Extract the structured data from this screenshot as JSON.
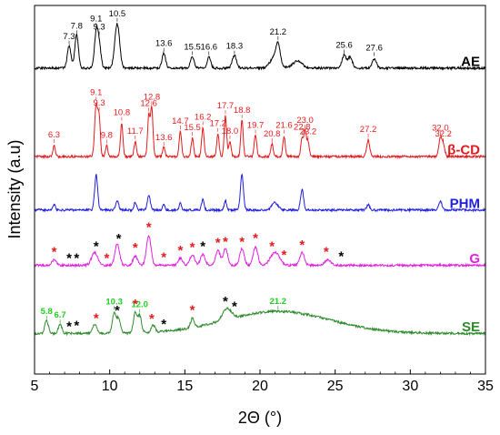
{
  "chart_data": {
    "type": "line",
    "xlabel": "2Θ (°)",
    "ylabel": "Intensity (a.u)",
    "xlim": [
      5,
      35
    ],
    "x_ticks": [
      5,
      10,
      15,
      20,
      25,
      30,
      35
    ],
    "y_ticks_shown": false,
    "legend": "inline labels at right of each trace",
    "series": [
      {
        "name": "AE",
        "color": "#000000",
        "baseline": 0.83,
        "peaks": [
          {
            "x": 7.3,
            "h": 0.06,
            "w": 0.12
          },
          {
            "x": 7.8,
            "h": 0.09,
            "w": 0.12
          },
          {
            "x": 9.1,
            "h": 0.09,
            "w": 0.12
          },
          {
            "x": 9.3,
            "h": 0.06,
            "w": 0.12
          },
          {
            "x": 10.5,
            "h": 0.12,
            "w": 0.16
          },
          {
            "x": 13.6,
            "h": 0.04,
            "w": 0.12
          },
          {
            "x": 15.5,
            "h": 0.03,
            "w": 0.12
          },
          {
            "x": 16.6,
            "h": 0.03,
            "w": 0.12
          },
          {
            "x": 18.3,
            "h": 0.035,
            "w": 0.14
          },
          {
            "x": 21.0,
            "h": 0.03,
            "w": 0.3
          },
          {
            "x": 21.2,
            "h": 0.045,
            "w": 0.14
          },
          {
            "x": 22.5,
            "h": 0.02,
            "w": 0.3
          },
          {
            "x": 25.6,
            "h": 0.035,
            "w": 0.14
          },
          {
            "x": 26.0,
            "h": 0.03,
            "w": 0.14
          },
          {
            "x": 27.6,
            "h": 0.025,
            "w": 0.14
          }
        ],
        "labels": [
          {
            "x": 7.3,
            "text": "7.3"
          },
          {
            "x": 7.8,
            "text": "7.8"
          },
          {
            "x": 9.1,
            "text": "9.1"
          },
          {
            "x": 9.3,
            "text": "9.3"
          },
          {
            "x": 10.5,
            "text": "10.5"
          },
          {
            "x": 13.6,
            "text": "13.6"
          },
          {
            "x": 15.5,
            "text": "15.5"
          },
          {
            "x": 16.6,
            "text": "16.6"
          },
          {
            "x": 18.3,
            "text": "18.3"
          },
          {
            "x": 21.2,
            "text": "21.2"
          },
          {
            "x": 25.6,
            "text": "25.6"
          },
          {
            "x": 27.6,
            "text": "27.6"
          }
        ]
      },
      {
        "name": "β-CD",
        "color": "#e41a1c",
        "baseline": 0.59,
        "peaks": [
          {
            "x": 6.3,
            "h": 0.03,
            "w": 0.08
          },
          {
            "x": 9.1,
            "h": 0.14,
            "w": 0.1
          },
          {
            "x": 9.3,
            "h": 0.1,
            "w": 0.08
          },
          {
            "x": 9.8,
            "h": 0.03,
            "w": 0.08
          },
          {
            "x": 10.8,
            "h": 0.09,
            "w": 0.08
          },
          {
            "x": 11.7,
            "h": 0.04,
            "w": 0.08
          },
          {
            "x": 12.6,
            "h": 0.11,
            "w": 0.08
          },
          {
            "x": 12.8,
            "h": 0.13,
            "w": 0.08
          },
          {
            "x": 13.6,
            "h": 0.025,
            "w": 0.08
          },
          {
            "x": 14.7,
            "h": 0.07,
            "w": 0.08
          },
          {
            "x": 15.5,
            "h": 0.05,
            "w": 0.08
          },
          {
            "x": 16.2,
            "h": 0.08,
            "w": 0.08
          },
          {
            "x": 17.2,
            "h": 0.06,
            "w": 0.08
          },
          {
            "x": 17.7,
            "h": 0.11,
            "w": 0.08
          },
          {
            "x": 18.0,
            "h": 0.04,
            "w": 0.08
          },
          {
            "x": 18.8,
            "h": 0.1,
            "w": 0.08
          },
          {
            "x": 19.7,
            "h": 0.06,
            "w": 0.08
          },
          {
            "x": 20.8,
            "h": 0.035,
            "w": 0.08
          },
          {
            "x": 21.6,
            "h": 0.055,
            "w": 0.08
          },
          {
            "x": 22.8,
            "h": 0.05,
            "w": 0.08
          },
          {
            "x": 23.0,
            "h": 0.07,
            "w": 0.08
          },
          {
            "x": 23.2,
            "h": 0.04,
            "w": 0.08
          },
          {
            "x": 27.2,
            "h": 0.045,
            "w": 0.1
          },
          {
            "x": 32.0,
            "h": 0.05,
            "w": 0.1
          },
          {
            "x": 32.2,
            "h": 0.03,
            "w": 0.1
          }
        ],
        "labels": [
          {
            "x": 6.3,
            "text": "6.3"
          },
          {
            "x": 9.1,
            "text": "9.1"
          },
          {
            "x": 9.3,
            "text": "9.3"
          },
          {
            "x": 9.8,
            "text": "9.8"
          },
          {
            "x": 10.8,
            "text": "10.8"
          },
          {
            "x": 11.7,
            "text": "11.7"
          },
          {
            "x": 12.6,
            "text": "12.6"
          },
          {
            "x": 12.8,
            "text": "12.8"
          },
          {
            "x": 13.6,
            "text": "13.6"
          },
          {
            "x": 14.7,
            "text": "14.7"
          },
          {
            "x": 15.5,
            "text": "15.5"
          },
          {
            "x": 16.2,
            "text": "16.2"
          },
          {
            "x": 17.2,
            "text": "17.2"
          },
          {
            "x": 17.7,
            "text": "17.7"
          },
          {
            "x": 18.0,
            "text": "18.0"
          },
          {
            "x": 18.8,
            "text": "18.8"
          },
          {
            "x": 19.7,
            "text": "19.7"
          },
          {
            "x": 20.8,
            "text": "20.8"
          },
          {
            "x": 21.6,
            "text": "21.6"
          },
          {
            "x": 22.8,
            "text": "22.8"
          },
          {
            "x": 23.0,
            "text": "23.0"
          },
          {
            "x": 23.2,
            "text": "23.2"
          },
          {
            "x": 27.2,
            "text": "27.2"
          },
          {
            "x": 32.0,
            "text": "32.0"
          },
          {
            "x": 32.2,
            "text": "32.2"
          }
        ]
      },
      {
        "name": "PHM",
        "color": "#1f1fdc",
        "baseline": 0.445,
        "peaks": [
          {
            "x": 6.3,
            "h": 0.015,
            "w": 0.08
          },
          {
            "x": 9.1,
            "h": 0.095,
            "w": 0.1
          },
          {
            "x": 10.5,
            "h": 0.025,
            "w": 0.1
          },
          {
            "x": 11.7,
            "h": 0.02,
            "w": 0.08
          },
          {
            "x": 12.6,
            "h": 0.04,
            "w": 0.1
          },
          {
            "x": 13.6,
            "h": 0.015,
            "w": 0.08
          },
          {
            "x": 14.7,
            "h": 0.02,
            "w": 0.08
          },
          {
            "x": 16.2,
            "h": 0.03,
            "w": 0.08
          },
          {
            "x": 17.7,
            "h": 0.025,
            "w": 0.08
          },
          {
            "x": 18.8,
            "h": 0.095,
            "w": 0.1
          },
          {
            "x": 21.0,
            "h": 0.02,
            "w": 0.2
          },
          {
            "x": 22.8,
            "h": 0.055,
            "w": 0.1
          },
          {
            "x": 27.2,
            "h": 0.015,
            "w": 0.1
          },
          {
            "x": 32.0,
            "h": 0.025,
            "w": 0.1
          }
        ],
        "labels": []
      },
      {
        "name": "G",
        "color": "#e020e0",
        "baseline": 0.295,
        "peaks": [
          {
            "x": 6.3,
            "h": 0.015,
            "w": 0.15
          },
          {
            "x": 9.0,
            "h": 0.035,
            "w": 0.2
          },
          {
            "x": 10.5,
            "h": 0.06,
            "w": 0.15
          },
          {
            "x": 11.7,
            "h": 0.025,
            "w": 0.15
          },
          {
            "x": 12.6,
            "h": 0.08,
            "w": 0.15
          },
          {
            "x": 14.7,
            "h": 0.02,
            "w": 0.15
          },
          {
            "x": 15.5,
            "h": 0.03,
            "w": 0.15
          },
          {
            "x": 16.2,
            "h": 0.03,
            "w": 0.15
          },
          {
            "x": 17.2,
            "h": 0.04,
            "w": 0.15
          },
          {
            "x": 17.7,
            "h": 0.045,
            "w": 0.15
          },
          {
            "x": 18.8,
            "h": 0.045,
            "w": 0.15
          },
          {
            "x": 19.7,
            "h": 0.05,
            "w": 0.15
          },
          {
            "x": 21.0,
            "h": 0.035,
            "w": 0.3
          },
          {
            "x": 22.8,
            "h": 0.035,
            "w": 0.15
          },
          {
            "x": 24.5,
            "h": 0.015,
            "w": 0.2
          }
        ],
        "labels": []
      },
      {
        "name": "SE",
        "color": "#2e8b2e",
        "baseline": 0.11,
        "peaks": [
          {
            "x": 5.8,
            "h": 0.035,
            "w": 0.12
          },
          {
            "x": 6.7,
            "h": 0.025,
            "w": 0.12
          },
          {
            "x": 9.0,
            "h": 0.025,
            "w": 0.15
          },
          {
            "x": 10.3,
            "h": 0.055,
            "w": 0.12
          },
          {
            "x": 10.6,
            "h": 0.04,
            "w": 0.12
          },
          {
            "x": 11.7,
            "h": 0.055,
            "w": 0.12
          },
          {
            "x": 12.0,
            "h": 0.045,
            "w": 0.12
          },
          {
            "x": 12.9,
            "h": 0.02,
            "w": 0.12
          },
          {
            "x": 15.5,
            "h": 0.025,
            "w": 0.12
          },
          {
            "x": 17.8,
            "h": 0.03,
            "w": 0.3
          },
          {
            "x": 21.2,
            "h": 0.06,
            "w": 3.5
          }
        ],
        "labels": [
          {
            "x": 5.8,
            "text": "5.8"
          },
          {
            "x": 6.7,
            "text": "6.7"
          },
          {
            "x": 10.3,
            "text": "10.3"
          },
          {
            "x": 12.0,
            "text": "12.0"
          },
          {
            "x": 21.2,
            "text": "21.2"
          }
        ]
      }
    ],
    "markers": [
      {
        "series": "G",
        "x": 6.3,
        "color": "#e41a1c"
      },
      {
        "series": "G",
        "x": 7.3,
        "color": "#000000"
      },
      {
        "series": "G",
        "x": 7.8,
        "color": "#000000"
      },
      {
        "series": "G",
        "x": 9.1,
        "color": "#000000"
      },
      {
        "series": "G",
        "x": 9.8,
        "color": "#e41a1c"
      },
      {
        "series": "G",
        "x": 10.6,
        "color": "#000000"
      },
      {
        "series": "G",
        "x": 11.7,
        "color": "#e41a1c"
      },
      {
        "series": "G",
        "x": 12.6,
        "color": "#e41a1c"
      },
      {
        "series": "G",
        "x": 13.6,
        "color": "#e41a1c"
      },
      {
        "series": "G",
        "x": 14.7,
        "color": "#e41a1c"
      },
      {
        "series": "G",
        "x": 15.5,
        "color": "#e41a1c"
      },
      {
        "series": "G",
        "x": 16.2,
        "color": "#000000"
      },
      {
        "series": "G",
        "x": 17.2,
        "color": "#e41a1c"
      },
      {
        "series": "G",
        "x": 17.7,
        "color": "#e41a1c"
      },
      {
        "series": "G",
        "x": 18.8,
        "color": "#e41a1c"
      },
      {
        "series": "G",
        "x": 19.7,
        "color": "#e41a1c"
      },
      {
        "series": "G",
        "x": 20.8,
        "color": "#e41a1c"
      },
      {
        "series": "G",
        "x": 21.6,
        "color": "#e41a1c"
      },
      {
        "series": "G",
        "x": 22.8,
        "color": "#e41a1c"
      },
      {
        "series": "G",
        "x": 24.4,
        "color": "#e41a1c"
      },
      {
        "series": "G",
        "x": 25.4,
        "color": "#000000"
      },
      {
        "series": "SE",
        "x": 7.3,
        "color": "#000000"
      },
      {
        "series": "SE",
        "x": 7.8,
        "color": "#000000"
      },
      {
        "series": "SE",
        "x": 9.1,
        "color": "#e41a1c"
      },
      {
        "series": "SE",
        "x": 10.5,
        "color": "#000000"
      },
      {
        "series": "SE",
        "x": 11.7,
        "color": "#e41a1c"
      },
      {
        "series": "SE",
        "x": 12.8,
        "color": "#e41a1c"
      },
      {
        "series": "SE",
        "x": 13.6,
        "color": "#000000"
      },
      {
        "series": "SE",
        "x": 15.5,
        "color": "#e41a1c"
      },
      {
        "series": "SE",
        "x": 17.7,
        "color": "#000000"
      },
      {
        "series": "SE",
        "x": 18.3,
        "color": "#000000"
      }
    ]
  }
}
